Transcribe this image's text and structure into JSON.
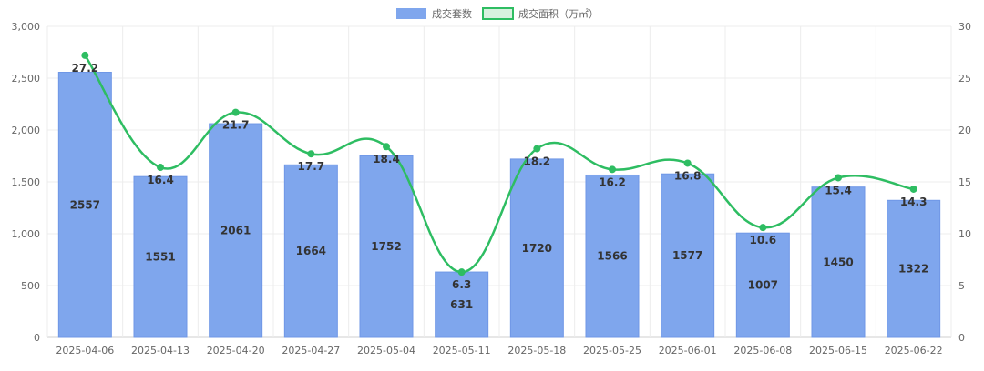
{
  "chart_data": {
    "type": "bar",
    "categories": [
      "2025-04-06",
      "2025-04-13",
      "2025-04-20",
      "2025-04-27",
      "2025-05-04",
      "2025-05-11",
      "2025-05-18",
      "2025-05-25",
      "2025-06-01",
      "2025-06-08",
      "2025-06-15",
      "2025-06-22"
    ],
    "series": [
      {
        "name": "成交套数",
        "type": "bar",
        "axis": "left",
        "values": [
          2557,
          1551,
          2061,
          1664,
          1752,
          631,
          1720,
          1566,
          1577,
          1007,
          1450,
          1322
        ],
        "color": "#7fa6ed"
      },
      {
        "name": "成交面积（万㎡）",
        "type": "line",
        "axis": "right",
        "values": [
          27.2,
          16.4,
          21.7,
          17.7,
          18.4,
          6.3,
          18.2,
          16.2,
          16.8,
          10.6,
          15.4,
          14.3
        ],
        "color": "#2ebd62"
      }
    ],
    "y_left": {
      "min": 0,
      "max": 3000,
      "ticks": [
        "0",
        "500",
        "1,000",
        "1,500",
        "2,000",
        "2,500",
        "3,000"
      ]
    },
    "y_right": {
      "min": 0,
      "max": 30,
      "ticks": [
        "0",
        "5",
        "10",
        "15",
        "20",
        "25",
        "30"
      ]
    },
    "legend_position": "top",
    "grid": true
  }
}
